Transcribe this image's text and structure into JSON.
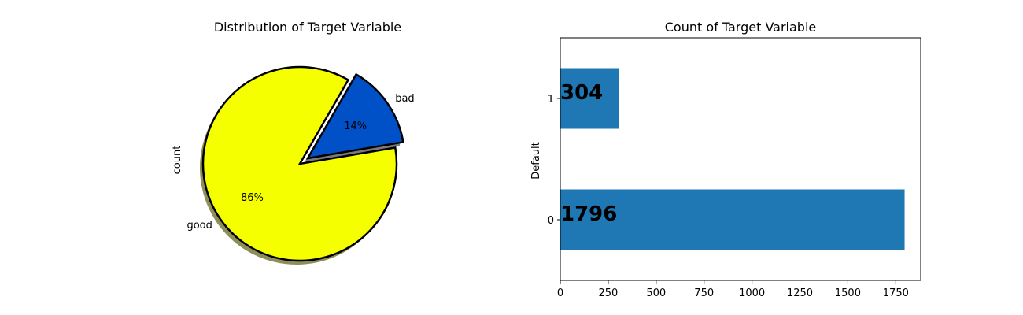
{
  "chart_data": [
    {
      "type": "pie",
      "title": "Distribution of Target Variable",
      "ylabel": "count",
      "slices": [
        {
          "label": "good",
          "value": 86,
          "pct_label": "86%",
          "color": "#f5ff00",
          "explode": false
        },
        {
          "label": "bad",
          "value": 14,
          "pct_label": "14%",
          "color": "#0050c8",
          "explode": true
        }
      ],
      "shadow": true,
      "edge_color": "#000000"
    },
    {
      "type": "bar",
      "orientation": "horizontal",
      "title": "Count of Target Variable",
      "xlabel": "",
      "ylabel": "Default",
      "categories": [
        "0",
        "1"
      ],
      "values": [
        1796,
        304
      ],
      "value_labels": [
        "1796",
        "304"
      ],
      "xlim": [
        0,
        1880
      ],
      "xticks": [
        0,
        250,
        500,
        750,
        1000,
        1250,
        1500,
        1750
      ],
      "bar_color": "#1f77b4",
      "grid": false
    }
  ]
}
